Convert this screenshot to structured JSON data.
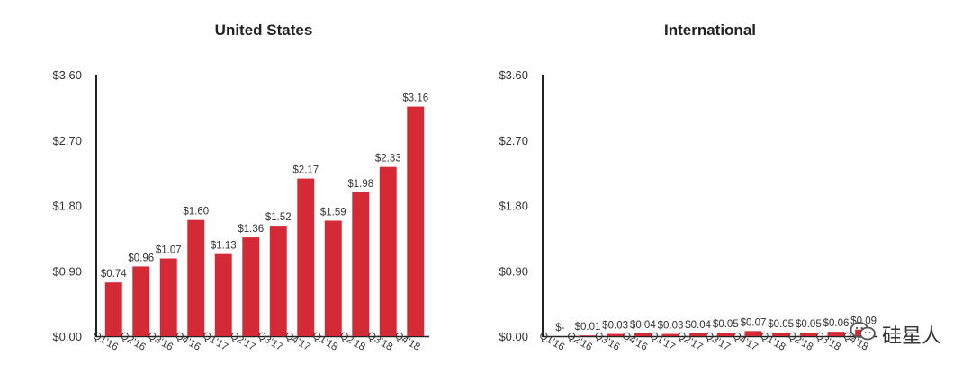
{
  "chart_data": [
    {
      "type": "bar",
      "title": "United States",
      "categories": [
        "Q1'16",
        "Q2'16",
        "Q3'16",
        "Q4'16",
        "Q1'17",
        "Q2'17",
        "Q3'17",
        "Q4'17",
        "Q1'18",
        "Q2'18",
        "Q3'18",
        "Q4'18"
      ],
      "values": [
        0.74,
        0.96,
        1.07,
        1.6,
        1.13,
        1.36,
        1.52,
        2.17,
        1.59,
        1.98,
        2.33,
        3.16
      ],
      "value_labels": [
        "$0.74",
        "$0.96",
        "$1.07",
        "$1.60",
        "$1.13",
        "$1.36",
        "$1.52",
        "$2.17",
        "$1.59",
        "$1.98",
        "$2.33",
        "$3.16"
      ],
      "yticks": [
        0,
        0.9,
        1.8,
        2.7,
        3.6
      ],
      "ytick_labels": [
        "$0.00",
        "$0.90",
        "$1.80",
        "$2.70",
        "$3.60"
      ],
      "ylim": [
        0,
        3.6
      ],
      "grid": false,
      "color": "#d42a35"
    },
    {
      "type": "bar",
      "title": "International",
      "categories": [
        "Q1'16",
        "Q2'16",
        "Q3'16",
        "Q4'16",
        "Q1'17",
        "Q2'17",
        "Q3'17",
        "Q4'17",
        "Q1'18",
        "Q2'18",
        "Q3'18",
        "Q4'18"
      ],
      "values": [
        0,
        0.01,
        0.03,
        0.04,
        0.03,
        0.04,
        0.05,
        0.07,
        0.05,
        0.05,
        0.06,
        0.09
      ],
      "value_labels": [
        "$-",
        "$0.01",
        "$0.03",
        "$0.04",
        "$0.03",
        "$0.04",
        "$0.05",
        "$0.07",
        "$0.05",
        "$0.05",
        "$0.06",
        "$0.09"
      ],
      "yticks": [
        0,
        0.9,
        1.8,
        2.7,
        3.6
      ],
      "ytick_labels": [
        "$0.00",
        "$0.90",
        "$1.80",
        "$2.70",
        "$3.60"
      ],
      "ylim": [
        0,
        3.6
      ],
      "grid": false,
      "color": "#d42a35"
    }
  ],
  "watermark": {
    "text": "硅星人",
    "icon": "wechat-icon"
  }
}
